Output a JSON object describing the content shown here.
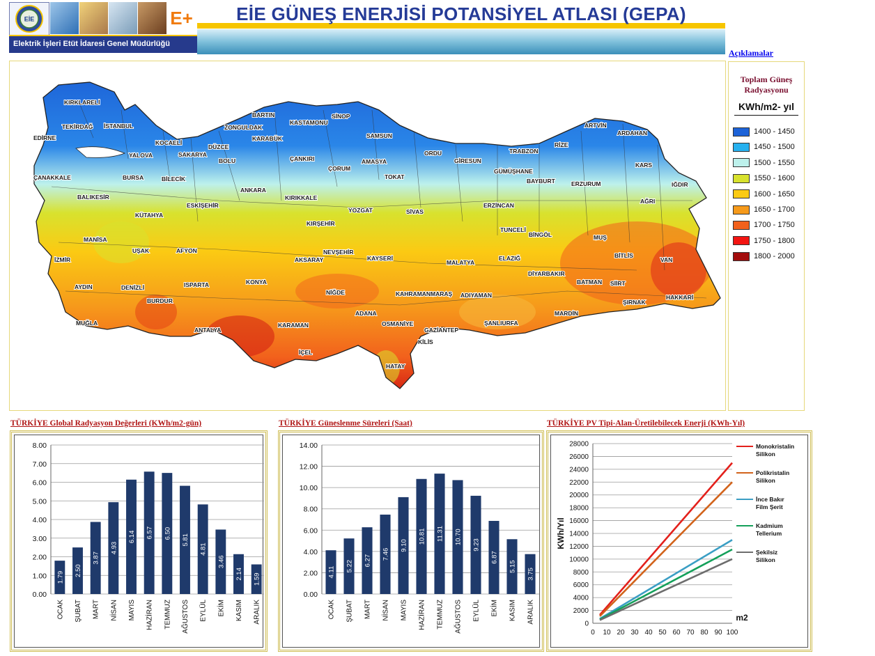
{
  "header": {
    "title": "EİE GÜNEŞ ENERJİSİ POTANSİYEL ATLASI (GEPA)",
    "org_name": "Elektrik İşleri Etüt İdaresi Genel Müdürlüğü",
    "logo_text": "EİE",
    "brand_mark": "E+",
    "explanations_link": "Açıklamalar"
  },
  "legend": {
    "title": "Toplam Güneş Radyasyonu",
    "unit": "KWh/m2- yıl",
    "classes": [
      {
        "label": "1400 - 1450",
        "color": "#1d63d8"
      },
      {
        "label": "1450 - 1500",
        "color": "#27b1ef"
      },
      {
        "label": "1500 - 1550",
        "color": "#bdf1ec"
      },
      {
        "label": "1550 - 1600",
        "color": "#d8e22e"
      },
      {
        "label": "1600 - 1650",
        "color": "#fbca13"
      },
      {
        "label": "1650 - 1700",
        "color": "#f69a1b"
      },
      {
        "label": "1700 - 1750",
        "color": "#f2611c"
      },
      {
        "label": "1750 - 1800",
        "color": "#f31512"
      },
      {
        "label": "1800 - 2000",
        "color": "#a30d0d"
      }
    ]
  },
  "map": {
    "provinces": [
      "KIRKLARELİ",
      "TEKİRDAĞ",
      "İSTANBUL",
      "EDİRNE",
      "KOCAELİ",
      "YALOVA",
      "SAKARYA",
      "DÜZCE",
      "BOLU",
      "ZONGULDAK",
      "BARTIN",
      "KARABÜK",
      "KASTAMONU",
      "SİNOP",
      "SAMSUN",
      "ÇANKIRI",
      "ÇORUM",
      "AMASYA",
      "TOKAT",
      "ORDU",
      "GİRESUN",
      "TRABZON",
      "RİZE",
      "ARTVİN",
      "ARDAHAN",
      "KARS",
      "IĞDIR",
      "GÜMÜŞHANE",
      "BAYBURT",
      "ERZURUM",
      "AĞRI",
      "ÇANAKKALE",
      "BURSA",
      "BİLECİK",
      "BALIKESİR",
      "ESKİŞEHİR",
      "ANKARA",
      "KIRIKKALE",
      "YOZGAT",
      "SİVAS",
      "ERZİNCAN",
      "TUNCELİ",
      "BİNGÖL",
      "MUŞ",
      "BİTLİS",
      "VAN",
      "KÜTAHYA",
      "MANİSA",
      "UŞAK",
      "AFYON",
      "KIRŞEHİR",
      "NEVŞEHİR",
      "KAYSERİ",
      "MALATYA",
      "ELAZIĞ",
      "DİYARBAKIR",
      "BATMAN",
      "SİİRT",
      "ŞIRNAK",
      "HAKKARİ",
      "İZMİR",
      "AYDIN",
      "DENİZLİ",
      "ISPARTA",
      "BURDUR",
      "KONYA",
      "AKSARAY",
      "NİĞDE",
      "KAHRAMANMARAŞ",
      "ADIYAMAN",
      "MARDİN",
      "MUĞLA",
      "ANTALYA",
      "KARAMAN",
      "ADANA",
      "OSMANİYE",
      "GAZİANTEP",
      "ŞANLIURFA",
      "KİLİS",
      "İÇEL",
      "HATAY"
    ]
  },
  "charts": {
    "radiation_title": "TÜRKİYE Global Radyasyon Değerleri (KWh/m2-gün)",
    "sunshine_title": "TÜRKİYE Güneslenme Süreleri (Saat)",
    "pv_title": "TÜRKİYE PV Tipi-Alan-Üretilebilecek Enerji (KWh-Yıl)"
  },
  "chart_data": [
    {
      "type": "bar",
      "title": "TÜRKİYE Global Radyasyon Değerleri (KWh/m2-gün)",
      "categories": [
        "OCAK",
        "ŞUBAT",
        "MART",
        "NİSAN",
        "MAYIS",
        "HAZİRAN",
        "TEMMUZ",
        "AĞUSTOS",
        "EYLÜL",
        "EKİM",
        "KASIM",
        "ARALIK"
      ],
      "values": [
        1.79,
        2.5,
        3.87,
        4.93,
        6.14,
        6.57,
        6.5,
        5.81,
        4.81,
        3.46,
        2.14,
        1.59
      ],
      "value_labels": [
        "1.79",
        "2.50",
        "3.87",
        "4.93",
        "6.14",
        "6.57",
        "6.50",
        "5.81",
        "4.81",
        "3.46",
        "2.14",
        "1.59"
      ],
      "ylim": [
        0,
        8
      ],
      "yticks": [
        "0.00",
        "1.00",
        "2.00",
        "3.00",
        "4.00",
        "5.00",
        "6.00",
        "7.00",
        "8.00"
      ],
      "grid": true,
      "bar_color": "#1f3a6b"
    },
    {
      "type": "bar",
      "title": "TÜRKİYE Güneslenme Süreleri (Saat)",
      "categories": [
        "OCAK",
        "ŞUBAT",
        "MART",
        "NİSAN",
        "MAYIS",
        "HAZİRAN",
        "TEMMUZ",
        "AĞUSTOS",
        "EYLÜL",
        "EKİM",
        "KASIM",
        "ARALIK"
      ],
      "values": [
        4.11,
        5.22,
        6.27,
        7.46,
        9.1,
        10.81,
        11.31,
        10.7,
        9.23,
        6.87,
        5.15,
        3.75
      ],
      "value_labels": [
        "4.11",
        "5.22",
        "6.27",
        "7.46",
        "9.10",
        "10.81",
        "11.31",
        "10.70",
        "9.23",
        "6.87",
        "5.15",
        "3.75"
      ],
      "ylim": [
        0,
        14
      ],
      "yticks": [
        "0.00",
        "2.00",
        "4.00",
        "6.00",
        "8.00",
        "10.00",
        "12.00",
        "14.00"
      ],
      "grid": true,
      "bar_color": "#1f3a6b"
    },
    {
      "type": "line",
      "title": "TÜRKİYE PV Tipi-Alan-Üretilebilecek Enerji (KWh-Yıl)",
      "xlabel": "m2",
      "ylabel": "KWh/Yıl",
      "xlim": [
        0,
        100
      ],
      "ylim": [
        0,
        28000
      ],
      "xticks": [
        "0",
        "10",
        "20",
        "30",
        "40",
        "50",
        "60",
        "70",
        "80",
        "90",
        "100"
      ],
      "yticks": [
        "0",
        "2000",
        "4000",
        "6000",
        "8000",
        "10000",
        "12000",
        "14000",
        "16000",
        "18000",
        "20000",
        "22000",
        "24000",
        "26000",
        "28000"
      ],
      "legend_position": "right",
      "grid": true,
      "series": [
        {
          "name": "Monokristalin Silikon",
          "color": "#e3201b",
          "x": [
            5,
            100
          ],
          "y": [
            1300,
            25000
          ]
        },
        {
          "name": "Polikristalin Silikon",
          "color": "#d2631b",
          "x": [
            5,
            100
          ],
          "y": [
            1100,
            22000
          ]
        },
        {
          "name": "İnce Bakır Film Şerit",
          "color": "#3a9ec4",
          "x": [
            5,
            100
          ],
          "y": [
            700,
            13000
          ]
        },
        {
          "name": "Kadmium Tellerium",
          "color": "#14a05a",
          "x": [
            5,
            100
          ],
          "y": [
            600,
            11500
          ]
        },
        {
          "name": "Şekilsiz Silikon",
          "color": "#6d6d6d",
          "x": [
            5,
            100
          ],
          "y": [
            500,
            10000
          ]
        }
      ]
    }
  ]
}
